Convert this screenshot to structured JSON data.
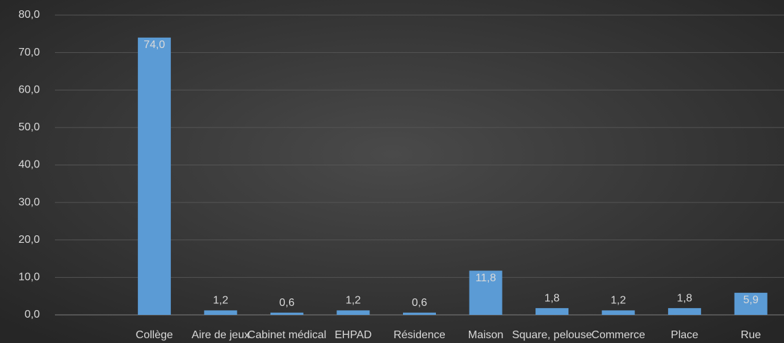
{
  "chart_data": {
    "type": "bar",
    "categories": [
      null,
      "Collège",
      "Aire de jeux",
      "Cabinet médical",
      "EHPAD",
      "Résidence",
      "Maison",
      "Square, pelouse",
      "Commerce",
      "Place",
      "Rue"
    ],
    "values": [
      null,
      74.0,
      1.2,
      0.6,
      1.2,
      0.6,
      11.8,
      1.8,
      1.2,
      1.8,
      5.9
    ],
    "value_labels": [
      null,
      "74,0",
      "1,2",
      "0,6",
      "1,2",
      "0,6",
      "11,8",
      "1,8",
      "1,2",
      "1,8",
      "5,9"
    ],
    "color": "#5b9bd5",
    "ylim": [
      0,
      80
    ],
    "yticks": [
      {
        "value": 0,
        "label": "0,0"
      },
      {
        "value": 10,
        "label": "10,0"
      },
      {
        "value": 20,
        "label": "20,0"
      },
      {
        "value": 30,
        "label": "30,0"
      },
      {
        "value": 40,
        "label": "40,0"
      },
      {
        "value": 50,
        "label": "50,0"
      },
      {
        "value": 60,
        "label": "60,0"
      },
      {
        "value": 70,
        "label": "70,0"
      },
      {
        "value": 80,
        "label": "80,0"
      }
    ],
    "grid": true
  }
}
